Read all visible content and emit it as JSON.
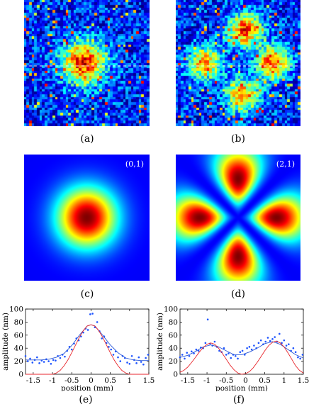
{
  "captions": [
    "(a)",
    "(b)",
    "(c)",
    "(d)",
    "(e)",
    "(f)"
  ],
  "mode_labels": {
    "c": "(0,1)",
    "d": "(2,1)"
  },
  "colors": {
    "deep_blue": "#1e3cbe",
    "red_fit": "#e8262c",
    "blue_fit": "#2d59d6",
    "dots": "#1f55ff"
  },
  "chart_data": [
    {
      "type": "scatter",
      "xlabel": "position (mm)",
      "ylabel": "amplitude (nm)",
      "xlim": [
        -1.7,
        1.5
      ],
      "ylim": [
        0,
        100
      ],
      "xticks": [
        "-1.5",
        "-1",
        "-0.5",
        "0",
        "0.5",
        "1",
        "1.5"
      ],
      "xtick_values": [
        -1.5,
        -1,
        -0.5,
        0,
        0.5,
        1,
        1.5
      ],
      "yticks": [
        "0",
        "20",
        "40",
        "60",
        "80",
        "100"
      ],
      "ytick_values": [
        0,
        20,
        40,
        60,
        80,
        100
      ],
      "grid": false,
      "series": [
        {
          "kind": "points",
          "color": "#1f55ff",
          "x": [
            -1.7,
            -1.64,
            -1.58,
            -1.52,
            -1.46,
            -1.4,
            -1.34,
            -1.28,
            -1.22,
            -1.16,
            -1.1,
            -1.04,
            -0.98,
            -0.92,
            -0.86,
            -0.8,
            -0.74,
            -0.68,
            -0.62,
            -0.56,
            -0.5,
            -0.44,
            -0.38,
            -0.32,
            -0.26,
            -0.2,
            -0.14,
            -0.08,
            -0.02,
            0.04,
            0.1,
            0.16,
            0.22,
            0.28,
            0.34,
            0.4,
            0.46,
            0.52,
            0.58,
            0.64,
            0.7,
            0.76,
            0.82,
            0.88,
            0.94,
            1.0,
            1.06,
            1.12,
            1.18,
            1.24,
            1.3,
            1.36,
            1.42,
            1.48
          ],
          "y": [
            28,
            20,
            24,
            18,
            22,
            26,
            17,
            21,
            19,
            23,
            20,
            16,
            22,
            21,
            28,
            25,
            30,
            27,
            36,
            42,
            38,
            47,
            55,
            52,
            58,
            64,
            70,
            68,
            92,
            93,
            72,
            80,
            66,
            55,
            58,
            48,
            42,
            38,
            30,
            35,
            26,
            20,
            28,
            25,
            18,
            16,
            28,
            22,
            17,
            26,
            19,
            15,
            25,
            30
          ]
        },
        {
          "kind": "fit",
          "color": "#2d59d6",
          "x": [
            -1.7,
            -1.5,
            -1.3,
            -1.1,
            -0.9,
            -0.7,
            -0.5,
            -0.3,
            -0.1,
            0.0,
            0.1,
            0.3,
            0.5,
            0.7,
            0.9,
            1.1,
            1.3,
            1.5
          ],
          "y": [
            22,
            22,
            22,
            23,
            26,
            32,
            44,
            60,
            74,
            76,
            74,
            60,
            45,
            33,
            25,
            22,
            21,
            21
          ]
        },
        {
          "kind": "model",
          "color": "#e8262c",
          "x": [
            -1.7,
            -1.5,
            -1.3,
            -1.1,
            -1.0,
            -0.9,
            -0.8,
            -0.7,
            -0.6,
            -0.5,
            -0.4,
            -0.3,
            -0.2,
            -0.1,
            0.0,
            0.1,
            0.2,
            0.3,
            0.4,
            0.5,
            0.6,
            0.7,
            0.8,
            0.9,
            1.0,
            1.1,
            1.3,
            1.5
          ],
          "y": [
            0,
            0,
            0,
            0,
            0,
            2,
            6,
            13,
            22,
            33,
            45,
            57,
            67,
            74,
            76,
            74,
            67,
            57,
            45,
            33,
            22,
            13,
            6,
            2,
            0,
            0,
            0,
            0
          ]
        }
      ]
    },
    {
      "type": "scatter",
      "xlabel": "position (mm)",
      "ylabel": "amplitude (nm)",
      "xlim": [
        -1.7,
        1.5
      ],
      "ylim": [
        0,
        100
      ],
      "xticks": [
        "-1.5",
        "-1",
        "-0.5",
        "0",
        "0.5",
        "1",
        "1.5"
      ],
      "xtick_values": [
        -1.5,
        -1,
        -0.5,
        0,
        0.5,
        1,
        1.5
      ],
      "yticks": [
        "0",
        "20",
        "40",
        "60",
        "80",
        "100"
      ],
      "ytick_values": [
        0,
        20,
        40,
        60,
        80,
        100
      ],
      "grid": false,
      "series": [
        {
          "kind": "points",
          "color": "#1f55ff",
          "x": [
            -1.7,
            -1.64,
            -1.58,
            -1.52,
            -1.46,
            -1.4,
            -1.34,
            -1.28,
            -1.22,
            -1.16,
            -1.1,
            -1.04,
            -0.98,
            -0.92,
            -0.86,
            -0.8,
            -0.74,
            -0.68,
            -0.62,
            -0.56,
            -0.5,
            -0.44,
            -0.38,
            -0.32,
            -0.26,
            -0.2,
            -0.14,
            -0.08,
            -0.02,
            0.04,
            0.1,
            0.16,
            0.22,
            0.28,
            0.34,
            0.4,
            0.46,
            0.52,
            0.58,
            0.64,
            0.7,
            0.76,
            0.82,
            0.88,
            0.94,
            1.0,
            1.06,
            1.12,
            1.18,
            1.24,
            1.3,
            1.36,
            1.42,
            1.48
          ],
          "y": [
            26,
            30,
            24,
            33,
            28,
            35,
            32,
            38,
            36,
            41,
            40,
            48,
            84,
            47,
            44,
            50,
            42,
            36,
            34,
            40,
            30,
            32,
            25,
            30,
            28,
            24,
            34,
            36,
            30,
            40,
            42,
            38,
            44,
            40,
            48,
            52,
            46,
            50,
            56,
            51,
            54,
            57,
            50,
            62,
            48,
            52,
            44,
            46,
            36,
            40,
            34,
            26,
            24,
            30
          ]
        },
        {
          "kind": "fit",
          "color": "#2d59d6",
          "x": [
            -1.7,
            -1.5,
            -1.3,
            -1.1,
            -0.9,
            -0.7,
            -0.5,
            -0.3,
            -0.1,
            0.0,
            0.1,
            0.3,
            0.5,
            0.7,
            0.9,
            1.1,
            1.3,
            1.5
          ],
          "y": [
            26,
            29,
            35,
            42,
            45,
            42,
            36,
            30,
            30,
            32,
            34,
            40,
            47,
            50,
            46,
            38,
            30,
            25
          ]
        },
        {
          "kind": "model",
          "color": "#e8262c",
          "x": [
            -1.7,
            -1.6,
            -1.5,
            -1.4,
            -1.3,
            -1.2,
            -1.1,
            -1.0,
            -0.9,
            -0.8,
            -0.7,
            -0.6,
            -0.5,
            -0.4,
            -0.3,
            -0.2,
            -0.1,
            0.0,
            0.1,
            0.2,
            0.3,
            0.4,
            0.5,
            0.6,
            0.7,
            0.8,
            0.9,
            1.0,
            1.1,
            1.2,
            1.3,
            1.4,
            1.5
          ],
          "y": [
            3,
            6,
            11,
            18,
            26,
            34,
            41,
            46,
            48,
            46,
            40,
            32,
            23,
            14,
            7,
            2,
            0,
            1,
            4,
            10,
            18,
            27,
            36,
            44,
            49,
            51,
            48,
            42,
            33,
            23,
            13,
            6,
            2
          ]
        }
      ]
    }
  ]
}
